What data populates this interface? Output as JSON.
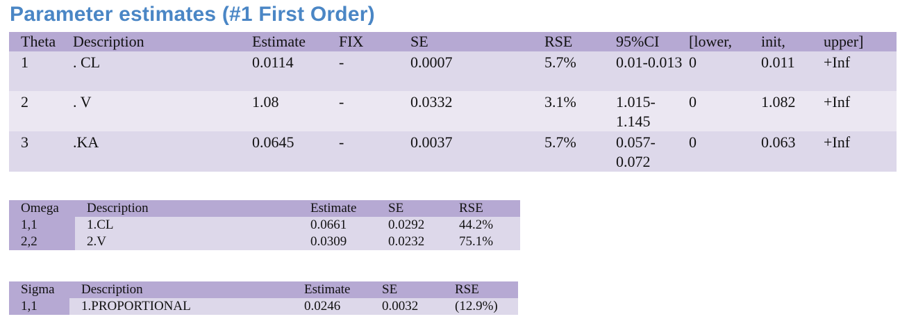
{
  "title": "Parameter estimates (#1 First Order)",
  "theta": {
    "headers": [
      "Theta",
      "Description",
      "Estimate",
      "FIX",
      "SE",
      "RSE",
      "95%CI",
      "[lower,",
      "init,",
      "upper]"
    ],
    "rows": [
      {
        "theta": "1",
        "description": ". CL",
        "estimate": "0.0114",
        "fix": "-",
        "se": "0.0007",
        "rse": "5.7%",
        "ci": "0.01-0.013",
        "lower": "0",
        "init": "0.011",
        "upper": "+Inf"
      },
      {
        "theta": "2",
        "description": ". V",
        "estimate": "1.08",
        "fix": "-",
        "se": "0.0332",
        "rse": "3.1%",
        "ci": "1.015-1.145",
        "lower": "0",
        "init": "1.082",
        "upper": "+Inf"
      },
      {
        "theta": "3",
        "description": ".KA",
        "estimate": "0.0645",
        "fix": "-",
        "se": "0.0037",
        "rse": "5.7%",
        "ci": "0.057-0.072",
        "lower": "0",
        "init": "0.063",
        "upper": "+Inf"
      }
    ]
  },
  "omega": {
    "headers": [
      "Omega",
      "Description",
      "Estimate",
      "SE",
      "RSE"
    ],
    "rows": [
      {
        "key": "1,1",
        "description": "1.CL",
        "estimate": "0.0661",
        "se": "0.0292",
        "rse": "44.2%"
      },
      {
        "key": "2,2",
        "description": "2.V",
        "estimate": "0.0309",
        "se": "0.0232",
        "rse": "75.1%"
      }
    ]
  },
  "sigma": {
    "headers": [
      "Sigma",
      "Description",
      "Estimate",
      "SE",
      "RSE"
    ],
    "rows": [
      {
        "key": "1,1",
        "description": "1.PROPORTIONAL",
        "estimate": "0.0246",
        "se": "0.0032",
        "rse": "(12.9%)"
      }
    ]
  }
}
